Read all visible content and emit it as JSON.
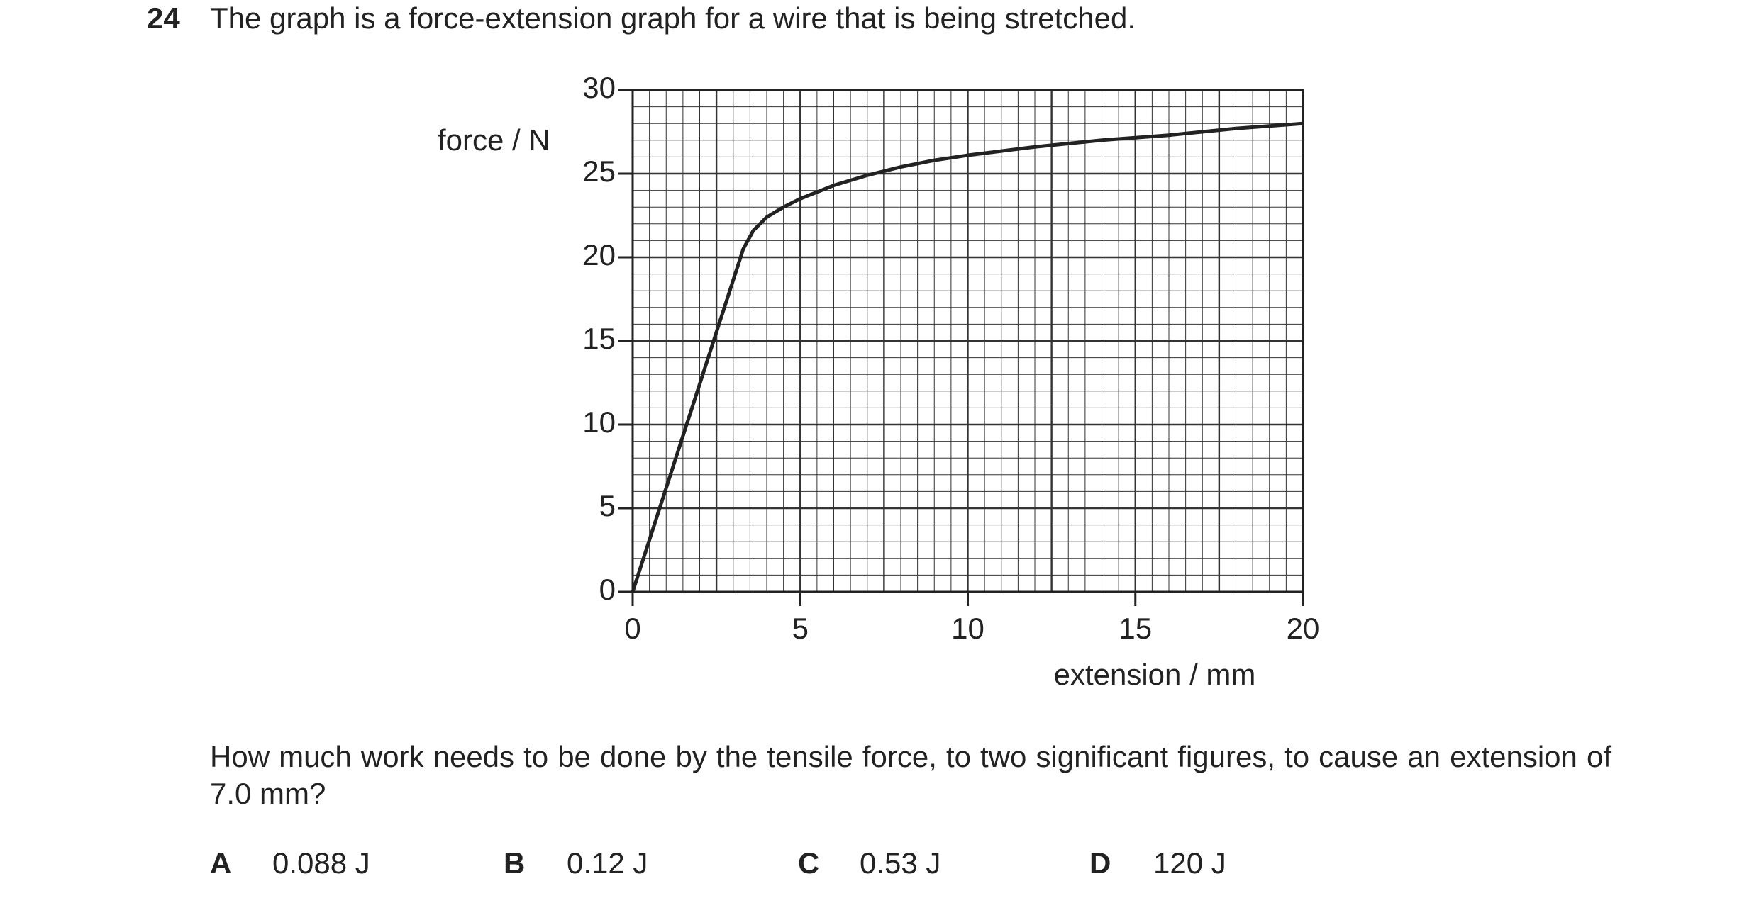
{
  "question": {
    "number": "24",
    "text": "The graph is a force-extension graph for a wire that is being stretched."
  },
  "chart_data": {
    "type": "line",
    "ylabel": "force / N",
    "xlabel": "extension / mm",
    "x": [
      0,
      3.3,
      3.6,
      4,
      4.5,
      5,
      6,
      7,
      8,
      9,
      10,
      12,
      14,
      16,
      18,
      20
    ],
    "y": [
      0,
      20.5,
      21.6,
      22.4,
      23,
      23.5,
      24.3,
      24.9,
      25.4,
      25.8,
      26.1,
      26.6,
      27,
      27.3,
      27.7,
      28
    ],
    "color": "#222222",
    "xlim": [
      0,
      20
    ],
    "ylim": [
      0,
      30
    ],
    "xticks": [
      0,
      5,
      10,
      15,
      20
    ],
    "yticks": [
      0,
      5,
      10,
      15,
      20,
      25,
      30
    ],
    "grid": true,
    "xminor": 0.5,
    "yminor": 1,
    "xmajor": 2.5,
    "ymajor": 5
  },
  "prompt": "How much work needs to be done by the tensile force, to two significant figures, to cause an extension of 7.0 mm?",
  "options": [
    {
      "letter": "A",
      "text": "0.088 J"
    },
    {
      "letter": "B",
      "text": "0.12 J"
    },
    {
      "letter": "C",
      "text": "0.53 J"
    },
    {
      "letter": "D",
      "text": "120 J"
    }
  ]
}
